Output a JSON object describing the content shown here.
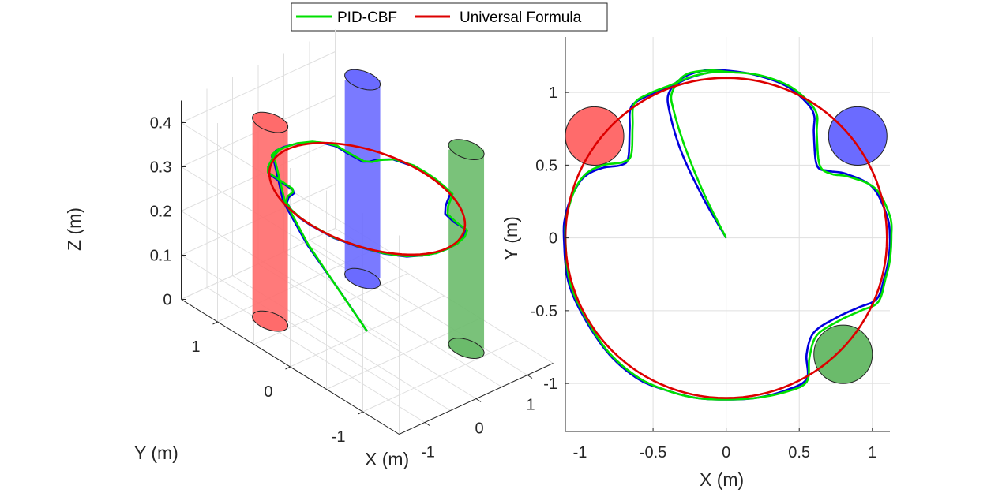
{
  "legend": {
    "entries": [
      {
        "label": "PID-CBF",
        "color": "#00e000"
      },
      {
        "label": "Universal Formula",
        "color": "#dd0000"
      }
    ]
  },
  "chart_data": [
    {
      "type": "line",
      "title": "",
      "xlabel": "X (m)",
      "ylabel": "Y (m)",
      "zlabel": "Z (m)",
      "xlim": [
        -1.5,
        1.5
      ],
      "ylim": [
        -1.5,
        1.5
      ],
      "zlim": [
        0,
        0.45
      ],
      "x_ticks": [
        {
          "v": -1,
          "label": "-1"
        },
        {
          "v": 0,
          "label": "0"
        },
        {
          "v": 1,
          "label": "1"
        }
      ],
      "y_ticks": [
        {
          "v": -1,
          "label": "-1"
        },
        {
          "v": 0,
          "label": "0"
        },
        {
          "v": 1,
          "label": "1"
        }
      ],
      "z_ticks": [
        {
          "v": 0,
          "label": "0"
        },
        {
          "v": 0.1,
          "label": "0.1"
        },
        {
          "v": 0.2,
          "label": "0.2"
        },
        {
          "v": 0.3,
          "label": "0.3"
        },
        {
          "v": 0.4,
          "label": "0.4"
        }
      ],
      "grid": true,
      "obstacles": [
        {
          "name": "red-cylinder",
          "x": -0.9,
          "y": 0.7,
          "r": 0.2,
          "height": 0.45,
          "color": "#ff6b6b"
        },
        {
          "name": "blue-cylinder",
          "x": 0.9,
          "y": 0.7,
          "r": 0.2,
          "height": 0.45,
          "color": "#6b6bff"
        },
        {
          "name": "green-cylinder",
          "x": 0.8,
          "y": -0.8,
          "r": 0.2,
          "height": 0.45,
          "color": "#6bbb6b"
        }
      ],
      "series": [
        {
          "name": "blue-trajectory",
          "color": "#0000dd",
          "z": 0.3
        },
        {
          "name": "PID-CBF",
          "color": "#00e000",
          "z": 0.3
        },
        {
          "name": "Universal Formula",
          "color": "#dd0000",
          "radius": 1.1,
          "z": 0.3
        }
      ]
    },
    {
      "type": "line",
      "title": "",
      "xlabel": "X (m)",
      "ylabel": "Y (m)",
      "xlim": [
        -1.1,
        1.12
      ],
      "ylim": [
        -1.33,
        1.38
      ],
      "x_ticks": [
        {
          "v": -1,
          "label": "-1"
        },
        {
          "v": -0.5,
          "label": "-0.5"
        },
        {
          "v": 0,
          "label": "0"
        },
        {
          "v": 0.5,
          "label": "0.5"
        },
        {
          "v": 1,
          "label": "1"
        }
      ],
      "y_ticks": [
        {
          "v": -1,
          "label": "-1"
        },
        {
          "v": -0.5,
          "label": "-0.5"
        },
        {
          "v": 0,
          "label": "0"
        },
        {
          "v": 0.5,
          "label": "0.5"
        },
        {
          "v": 1,
          "label": "1"
        }
      ],
      "grid": true,
      "obstacles": [
        {
          "name": "red-circle",
          "x": -0.9,
          "y": 0.7,
          "r": 0.2,
          "color": "#ff6b6b"
        },
        {
          "name": "blue-circle",
          "x": 0.9,
          "y": 0.7,
          "r": 0.2,
          "color": "#6b6bff"
        },
        {
          "name": "green-circle",
          "x": 0.8,
          "y": -0.8,
          "r": 0.2,
          "color": "#6bbb6b"
        }
      ],
      "series": [
        {
          "name": "blue-trajectory",
          "color": "#0000dd",
          "points": [
            [
              0,
              0
            ],
            [
              -0.16,
              0.28
            ],
            [
              -0.31,
              0.6
            ],
            [
              -0.39,
              0.88
            ],
            [
              -0.39,
              1.0
            ],
            [
              -0.3,
              1.1
            ],
            [
              -0.15,
              1.15
            ],
            [
              0,
              1.15
            ],
            [
              0.2,
              1.12
            ],
            [
              0.4,
              1.05
            ],
            [
              0.53,
              0.95
            ],
            [
              0.6,
              0.85
            ],
            [
              0.6,
              0.72
            ],
            [
              0.62,
              0.5
            ],
            [
              0.7,
              0.46
            ],
            [
              0.82,
              0.44
            ],
            [
              1.0,
              0.35
            ],
            [
              1.1,
              0.15
            ],
            [
              1.12,
              0.0
            ],
            [
              1.11,
              -0.15
            ],
            [
              1.08,
              -0.28
            ],
            [
              1.03,
              -0.42
            ],
            [
              0.9,
              -0.48
            ],
            [
              0.75,
              -0.55
            ],
            [
              0.6,
              -0.65
            ],
            [
              0.55,
              -0.8
            ],
            [
              0.55,
              -0.97
            ],
            [
              0.4,
              -1.05
            ],
            [
              0.2,
              -1.1
            ],
            [
              0,
              -1.11
            ],
            [
              -0.2,
              -1.1
            ],
            [
              -0.4,
              -1.05
            ],
            [
              -0.6,
              -0.97
            ],
            [
              -0.8,
              -0.8
            ],
            [
              -0.97,
              -0.55
            ],
            [
              -1.08,
              -0.3
            ],
            [
              -1.11,
              0.0
            ],
            [
              -1.1,
              0.15
            ],
            [
              -1.05,
              0.3
            ],
            [
              -0.97,
              0.42
            ],
            [
              -0.85,
              0.48
            ],
            [
              -0.72,
              0.5
            ],
            [
              -0.67,
              0.55
            ],
            [
              -0.66,
              0.75
            ],
            [
              -0.65,
              0.9
            ],
            [
              -0.55,
              0.97
            ],
            [
              -0.4,
              1.03
            ],
            [
              -0.25,
              1.1
            ],
            [
              -0.1,
              1.14
            ],
            [
              0,
              1.15
            ]
          ]
        },
        {
          "name": "PID-CBF",
          "color": "#00e000",
          "points": [
            [
              0,
              0
            ],
            [
              -0.15,
              0.3
            ],
            [
              -0.28,
              0.62
            ],
            [
              -0.36,
              0.88
            ],
            [
              -0.37,
              1.0
            ],
            [
              -0.28,
              1.12
            ],
            [
              -0.12,
              1.15
            ],
            [
              0.02,
              1.14
            ],
            [
              0.22,
              1.12
            ],
            [
              0.42,
              1.05
            ],
            [
              0.55,
              0.95
            ],
            [
              0.62,
              0.85
            ],
            [
              0.62,
              0.72
            ],
            [
              0.64,
              0.5
            ],
            [
              0.72,
              0.44
            ],
            [
              0.84,
              0.42
            ],
            [
              1.02,
              0.34
            ],
            [
              1.12,
              0.15
            ],
            [
              1.13,
              0.0
            ],
            [
              1.12,
              -0.15
            ],
            [
              1.09,
              -0.28
            ],
            [
              1.04,
              -0.44
            ],
            [
              0.92,
              -0.5
            ],
            [
              0.77,
              -0.57
            ],
            [
              0.62,
              -0.67
            ],
            [
              0.57,
              -0.82
            ],
            [
              0.55,
              -0.99
            ],
            [
              0.4,
              -1.06
            ],
            [
              0.2,
              -1.1
            ],
            [
              0,
              -1.11
            ],
            [
              -0.2,
              -1.1
            ],
            [
              -0.4,
              -1.05
            ],
            [
              -0.6,
              -0.96
            ],
            [
              -0.8,
              -0.79
            ],
            [
              -0.96,
              -0.55
            ],
            [
              -1.07,
              -0.3
            ],
            [
              -1.1,
              0.0
            ],
            [
              -1.09,
              0.15
            ],
            [
              -1.04,
              0.32
            ],
            [
              -0.96,
              0.44
            ],
            [
              -0.84,
              0.5
            ],
            [
              -0.71,
              0.52
            ],
            [
              -0.65,
              0.57
            ],
            [
              -0.64,
              0.77
            ],
            [
              -0.63,
              0.92
            ],
            [
              -0.53,
              0.99
            ],
            [
              -0.38,
              1.05
            ],
            [
              -0.23,
              1.11
            ],
            [
              -0.08,
              1.14
            ],
            [
              0.02,
              1.14
            ]
          ]
        },
        {
          "name": "Universal Formula",
          "color": "#dd0000",
          "radius": 1.1,
          "center": [
            0,
            0
          ]
        }
      ]
    }
  ]
}
